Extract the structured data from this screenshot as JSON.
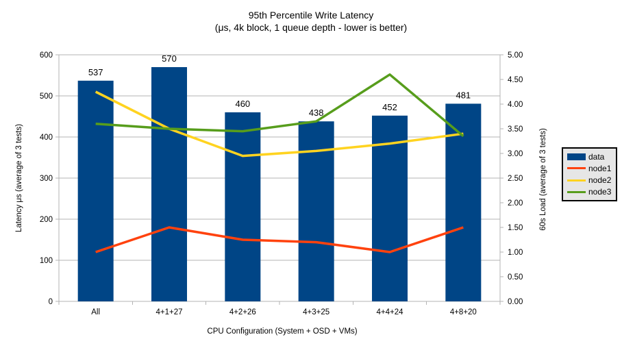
{
  "chart_data": {
    "type": "combo-bar-line",
    "title": "95th Percentile Write Latency",
    "subtitle": "(μs, 4k block, 1 queue depth - lower is better)",
    "categories": [
      "All",
      "4+1+27",
      "4+2+26",
      "4+3+25",
      "4+4+24",
      "4+8+20"
    ],
    "xlabel": "CPU Configuration (System + OSD + VMs)",
    "axes": {
      "left": {
        "label": "Latency μs (average of 3 tests)",
        "min": 0,
        "max": 600,
        "step": 100,
        "decimals": 0
      },
      "right": {
        "label": "60s Load (average of 3 tests)",
        "min": 0,
        "max": 5,
        "step": 0.5,
        "decimals": 2
      }
    },
    "bar_series": {
      "name": "data",
      "axis": "left",
      "color": "#004586",
      "values": [
        537,
        570,
        460,
        438,
        452,
        481
      ],
      "value_labels": [
        "537",
        "570",
        "460",
        "438",
        "452",
        "481"
      ]
    },
    "line_series": [
      {
        "name": "node1",
        "axis": "right",
        "color": "#FF420E",
        "values": [
          1.0,
          1.5,
          1.25,
          1.2,
          1.0,
          1.5
        ]
      },
      {
        "name": "node2",
        "axis": "right",
        "color": "#FFD320",
        "values": [
          4.25,
          3.5,
          2.95,
          3.05,
          3.2,
          3.4
        ]
      },
      {
        "name": "node3",
        "axis": "right",
        "color": "#579D1C",
        "values": [
          3.6,
          3.5,
          3.45,
          3.65,
          4.6,
          3.35
        ]
      }
    ],
    "legend": {
      "position": "right",
      "background": "#E6E6E6",
      "items": [
        {
          "label": "data",
          "color": "#004586",
          "marker": "bar"
        },
        {
          "label": "node1",
          "color": "#FF420E",
          "marker": "line"
        },
        {
          "label": "node2",
          "color": "#FFD320",
          "marker": "line"
        },
        {
          "label": "node3",
          "color": "#579D1C",
          "marker": "line"
        }
      ]
    },
    "grid": {
      "shown": true,
      "color": "#B3B3B3"
    },
    "text_color": "#000000",
    "background_color": "#FFFFFF"
  }
}
